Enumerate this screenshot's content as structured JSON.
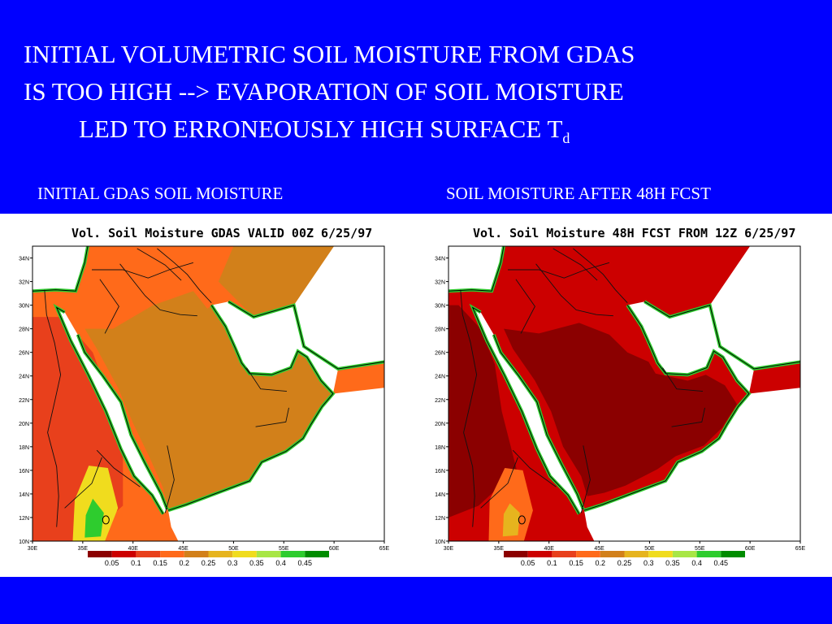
{
  "slide": {
    "title_line1": "INITIAL VOLUMETRIC SOIL MOISTURE FROM GDAS",
    "title_line2": "IS TOO HIGH --> EVAPORATION OF SOIL MOISTURE",
    "title_line3": "LED TO ERRONEOUSLY HIGH SURFACE T",
    "title_subscript": "d",
    "left_heading": "INITIAL GDAS SOIL MOISTURE",
    "right_heading": "SOIL MOISTURE AFTER 48H FCST"
  },
  "colors": {
    "background": "#0000ff",
    "text": "#ffffff",
    "scale": [
      "#8b0000",
      "#cc0000",
      "#e8401c",
      "#ff6a1a",
      "#d2801a",
      "#e6b41e",
      "#f0dc1e",
      "#a8e646",
      "#2ecc2e",
      "#008c00"
    ]
  },
  "chart_data": [
    {
      "type": "heatmap",
      "title": "Vol. Soil Moisture GDAS VALID 00Z 6/25/97",
      "x_ticks": [
        "30E",
        "35E",
        "40E",
        "45E",
        "50E",
        "55E",
        "60E",
        "65E"
      ],
      "y_ticks": [
        "34N",
        "32N",
        "30N",
        "28N",
        "26N",
        "24N",
        "22N",
        "20N",
        "18N",
        "16N",
        "14N",
        "12N",
        "10N"
      ],
      "xlim": [
        30,
        65
      ],
      "ylim": [
        10,
        35
      ],
      "colorbar_ticks": [
        "0.05",
        "0.1",
        "0.15",
        "0.2",
        "0.25",
        "0.3",
        "0.35",
        "0.4",
        "0.45"
      ],
      "dominant_range": "0.15-0.25",
      "regions": [
        {
          "area": "Arabian Peninsula interior",
          "range": "0.2-0.25"
        },
        {
          "area": "Western Arabia / Sudan",
          "range": "0.15-0.2"
        },
        {
          "area": "Ethiopian highlands",
          "range": "0.3-0.4"
        }
      ]
    },
    {
      "type": "heatmap",
      "title": "Vol. Soil Moisture 48H FCST FROM 12Z 6/25/97",
      "x_ticks": [
        "30E",
        "35E",
        "40E",
        "45E",
        "50E",
        "55E",
        "60E",
        "65E"
      ],
      "y_ticks": [
        "34N",
        "32N",
        "30N",
        "28N",
        "26N",
        "24N",
        "22N",
        "20N",
        "18N",
        "16N",
        "14N",
        "12N",
        "10N"
      ],
      "xlim": [
        30,
        65
      ],
      "ylim": [
        10,
        35
      ],
      "colorbar_ticks": [
        "0.05",
        "0.1",
        "0.15",
        "0.2",
        "0.25",
        "0.3",
        "0.35",
        "0.4",
        "0.45"
      ],
      "dominant_range": "0.05-0.1",
      "regions": [
        {
          "area": "Arabian Peninsula interior",
          "range": "0.05-0.1"
        },
        {
          "area": "Northern Arabia / Iran",
          "range": "0.1-0.15"
        },
        {
          "area": "Ethiopian highlands",
          "range": "0.15-0.35"
        }
      ]
    }
  ]
}
